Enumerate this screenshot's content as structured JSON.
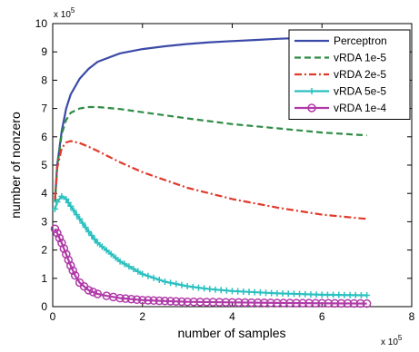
{
  "chart_data": {
    "type": "line",
    "xlabel": "number of samples",
    "ylabel": "number of nonzero",
    "x_multiplier": "x 10",
    "x_multiplier_exp": "5",
    "y_multiplier": "x 10",
    "y_multiplier_exp": "5",
    "xlim": [
      0,
      8
    ],
    "ylim": [
      0,
      10
    ],
    "xticks": [
      0,
      2,
      4,
      6,
      8
    ],
    "yticks": [
      0,
      1,
      2,
      3,
      4,
      5,
      6,
      7,
      8,
      9,
      10
    ],
    "grid": false,
    "legend_position": "top-right",
    "series": [
      {
        "name": "Perceptron",
        "color": "#3b4aa8",
        "style": "solid",
        "marker": "none",
        "x": [
          0.05,
          0.1,
          0.2,
          0.3,
          0.4,
          0.6,
          0.8,
          1.0,
          1.5,
          2.0,
          2.5,
          3.0,
          3.5,
          4.0,
          4.5,
          5.0,
          5.5,
          6.0,
          6.5
        ],
        "y": [
          3.7,
          5.0,
          6.2,
          7.0,
          7.5,
          8.05,
          8.4,
          8.65,
          8.95,
          9.1,
          9.2,
          9.28,
          9.34,
          9.38,
          9.42,
          9.46,
          9.49,
          9.52,
          9.55
        ]
      },
      {
        "name": "vRDA 1e-5",
        "color": "#2e8b44",
        "style": "dashed",
        "marker": "none",
        "x": [
          0.05,
          0.1,
          0.2,
          0.3,
          0.4,
          0.6,
          0.8,
          1.0,
          1.5,
          2.0,
          3.0,
          4.0,
          5.0,
          6.0,
          7.0
        ],
        "y": [
          3.7,
          4.9,
          6.1,
          6.6,
          6.85,
          7.0,
          7.05,
          7.05,
          6.98,
          6.87,
          6.65,
          6.45,
          6.3,
          6.15,
          6.05
        ]
      },
      {
        "name": "vRDA 2e-5",
        "color": "#e03a2a",
        "style": "dashdot",
        "marker": "none",
        "x": [
          0.05,
          0.1,
          0.2,
          0.3,
          0.4,
          0.6,
          0.8,
          1.0,
          1.5,
          2.0,
          3.0,
          4.0,
          5.0,
          6.0,
          7.0
        ],
        "y": [
          3.8,
          4.9,
          5.6,
          5.8,
          5.85,
          5.78,
          5.65,
          5.5,
          5.1,
          4.75,
          4.2,
          3.8,
          3.5,
          3.25,
          3.1
        ]
      },
      {
        "name": "vRDA 5e-5",
        "color": "#2bc0c0",
        "style": "solid",
        "marker": "plus",
        "x": [
          0.05,
          0.1,
          0.2,
          0.3,
          0.4,
          0.6,
          0.8,
          1.0,
          1.5,
          2.0,
          2.5,
          3.0,
          3.5,
          4.0,
          5.0,
          6.0,
          7.0
        ],
        "y": [
          3.45,
          3.7,
          3.9,
          3.8,
          3.55,
          3.1,
          2.65,
          2.25,
          1.6,
          1.15,
          0.88,
          0.72,
          0.62,
          0.55,
          0.47,
          0.42,
          0.4
        ]
      },
      {
        "name": "vRDA 1e-4",
        "color": "#b03aa8",
        "style": "solid",
        "marker": "circle",
        "x": [
          0.05,
          0.1,
          0.2,
          0.3,
          0.4,
          0.5,
          0.6,
          0.8,
          1.0,
          1.2,
          1.5,
          2.0,
          2.5,
          3.0,
          4.0,
          5.0,
          6.0,
          7.0
        ],
        "y": [
          2.75,
          2.6,
          2.25,
          1.85,
          1.45,
          1.1,
          0.85,
          0.58,
          0.45,
          0.38,
          0.3,
          0.23,
          0.2,
          0.17,
          0.15,
          0.13,
          0.12,
          0.11
        ]
      }
    ]
  }
}
